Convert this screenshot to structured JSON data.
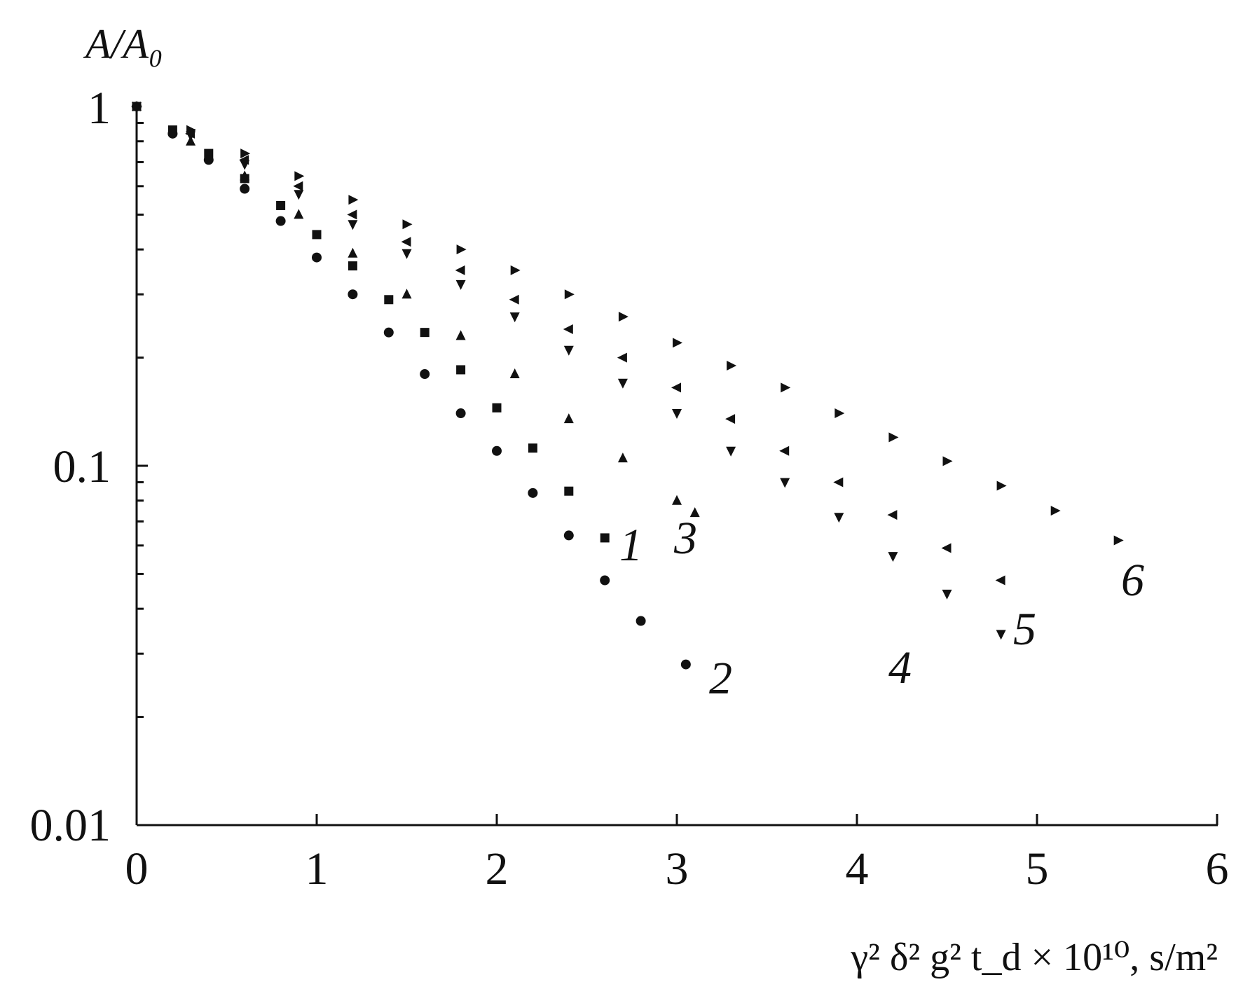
{
  "chart_data": {
    "type": "scatter",
    "title": "",
    "xlabel": "γ² δ² g² t_d × 10¹⁰, s/m²",
    "ylabel": "A/A₀",
    "xlim": [
      0,
      6
    ],
    "ylim": [
      0.01,
      1
    ],
    "yscale": "log",
    "grid": false,
    "x_ticks": [
      "0",
      "1",
      "2",
      "3",
      "4",
      "5",
      "6"
    ],
    "y_ticks": [
      "0.01",
      "0.1",
      "1"
    ],
    "series": [
      {
        "name": "1",
        "marker": "square",
        "x": [
          0.0,
          0.2,
          0.4,
          0.6,
          0.8,
          1.0,
          1.2,
          1.4,
          1.6,
          1.8,
          2.0,
          2.2,
          2.4,
          2.6
        ],
        "y": [
          1.0,
          0.86,
          0.74,
          0.63,
          0.53,
          0.44,
          0.36,
          0.29,
          0.235,
          0.185,
          0.145,
          0.112,
          0.085,
          0.063
        ]
      },
      {
        "name": "2",
        "marker": "circle",
        "x": [
          0.0,
          0.2,
          0.4,
          0.6,
          0.8,
          1.0,
          1.2,
          1.4,
          1.6,
          1.8,
          2.0,
          2.2,
          2.4,
          2.6,
          2.8,
          3.05
        ],
        "y": [
          1.0,
          0.84,
          0.71,
          0.59,
          0.48,
          0.38,
          0.3,
          0.235,
          0.18,
          0.14,
          0.11,
          0.084,
          0.064,
          0.048,
          0.037,
          0.028
        ]
      },
      {
        "name": "3",
        "marker": "triangle-up",
        "x": [
          0.0,
          0.3,
          0.6,
          0.9,
          1.2,
          1.5,
          1.8,
          2.1,
          2.4,
          2.7,
          3.0,
          3.1
        ],
        "y": [
          1.0,
          0.8,
          0.64,
          0.5,
          0.39,
          0.3,
          0.23,
          0.18,
          0.135,
          0.105,
          0.08,
          0.074
        ]
      },
      {
        "name": "4",
        "marker": "triangle-down",
        "x": [
          0.0,
          0.3,
          0.6,
          0.9,
          1.2,
          1.5,
          1.8,
          2.1,
          2.4,
          2.7,
          3.0,
          3.3,
          3.6,
          3.9,
          4.2,
          4.5,
          4.8
        ],
        "y": [
          1.0,
          0.83,
          0.69,
          0.57,
          0.47,
          0.39,
          0.32,
          0.26,
          0.21,
          0.17,
          0.14,
          0.11,
          0.09,
          0.072,
          0.056,
          0.044,
          0.034
        ]
      },
      {
        "name": "5",
        "marker": "triangle-left",
        "x": [
          0.0,
          0.3,
          0.6,
          0.9,
          1.2,
          1.5,
          1.8,
          2.1,
          2.4,
          2.7,
          3.0,
          3.3,
          3.6,
          3.9,
          4.2,
          4.5,
          4.8
        ],
        "y": [
          1.0,
          0.84,
          0.71,
          0.6,
          0.5,
          0.42,
          0.35,
          0.29,
          0.24,
          0.2,
          0.165,
          0.135,
          0.11,
          0.09,
          0.073,
          0.059,
          0.048
        ]
      },
      {
        "name": "6",
        "marker": "triangle-right",
        "x": [
          0.0,
          0.3,
          0.6,
          0.9,
          1.2,
          1.5,
          1.8,
          2.1,
          2.4,
          2.7,
          3.0,
          3.3,
          3.6,
          3.9,
          4.2,
          4.5,
          4.8,
          5.1,
          5.45
        ],
        "y": [
          1.0,
          0.86,
          0.74,
          0.64,
          0.55,
          0.47,
          0.4,
          0.35,
          0.3,
          0.26,
          0.22,
          0.19,
          0.165,
          0.14,
          0.12,
          0.103,
          0.088,
          0.075,
          0.062
        ]
      }
    ],
    "series_labels": [
      "1",
      "2",
      "3",
      "4",
      "5",
      "6"
    ]
  }
}
